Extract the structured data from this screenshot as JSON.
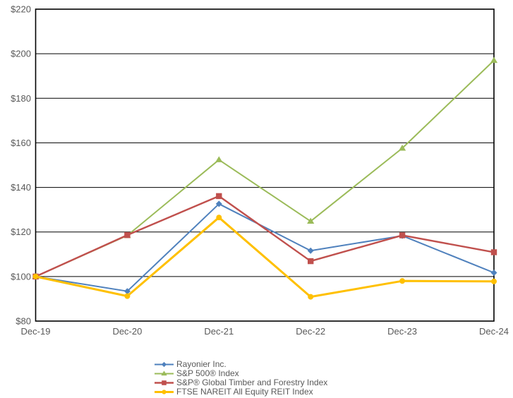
{
  "page": {
    "background": "#FFFFFF"
  },
  "chart_data": {
    "type": "line",
    "title": "",
    "xlabel": "",
    "ylabel": "",
    "x": [
      "Dec-19",
      "Dec-20",
      "Dec-21",
      "Dec-22",
      "Dec-23",
      "Dec-24"
    ],
    "series": [
      {
        "name": "Rayonier Inc.",
        "color": "#4F81BD",
        "marker": "diamond",
        "line_width": 2,
        "values": [
          100,
          93.4,
          132.6,
          111.6,
          118.3,
          101.7
        ]
      },
      {
        "name": "S&P 500® Index",
        "color": "#9BBB59",
        "marker": "triangle",
        "line_width": 2,
        "values": [
          100,
          118.4,
          152.4,
          124.8,
          157.6,
          197.0
        ]
      },
      {
        "name": "S&P® Global Timber and Forestry Index",
        "color": "#C0504D",
        "marker": "square",
        "line_width": 2.4,
        "values": [
          100,
          118.6,
          136.1,
          106.9,
          118.5,
          110.9
        ]
      },
      {
        "name": "FTSE NAREIT All Equity REIT Index",
        "color": "#FFC000",
        "marker": "circle",
        "line_width": 3,
        "values": [
          100,
          91.2,
          126.5,
          90.9,
          98.0,
          97.8
        ]
      }
    ],
    "ylim": [
      80,
      220
    ],
    "ytick_step": 20,
    "ytick_labels": [
      "$80",
      "$100",
      "$120",
      "$140",
      "$160",
      "$180",
      "$200",
      "$220"
    ],
    "grid": "horizontal",
    "gridline_color": "#000000",
    "border_color": "#000000",
    "axis_text_color": "#595959",
    "legend_position": "bottom-center",
    "baseline_value": 100
  }
}
